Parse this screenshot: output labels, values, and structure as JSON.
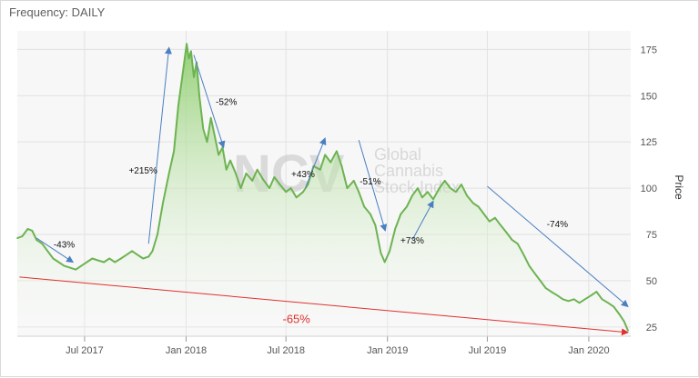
{
  "header": {
    "frequency_label": "Frequency: DAILY"
  },
  "watermark": {
    "logo": "NCV",
    "line1": "Global",
    "line2": "Cannabis",
    "line3": "Stock Index"
  },
  "colors": {
    "line": "#6db352",
    "fill_top": "#8fce6f",
    "arrow_blue": "#4a7fc1",
    "trend_red": "#e03030"
  },
  "chart_data": {
    "type": "area",
    "xlabel": "",
    "ylabel": "Price",
    "ylim": [
      20,
      185
    ],
    "yticks": [
      25,
      50,
      75,
      100,
      125,
      150,
      175
    ],
    "xlim": [
      "2017-03-01",
      "2020-03-17"
    ],
    "xticks": [
      {
        "date": "2017-07-01",
        "label": "Jul 2017"
      },
      {
        "date": "2018-01-01",
        "label": "Jan 2018"
      },
      {
        "date": "2018-07-01",
        "label": "Jul 2018"
      },
      {
        "date": "2019-01-01",
        "label": "Jan 2019"
      },
      {
        "date": "2019-07-01",
        "label": "Jul 2019"
      },
      {
        "date": "2020-01-01",
        "label": "Jan 2020"
      }
    ],
    "grid": true,
    "series": [
      {
        "points": [
          [
            "2017-03-01",
            73
          ],
          [
            "2017-03-10",
            74
          ],
          [
            "2017-03-20",
            78
          ],
          [
            "2017-03-28",
            77
          ],
          [
            "2017-04-05",
            72
          ],
          [
            "2017-04-15",
            70
          ],
          [
            "2017-04-25",
            66
          ],
          [
            "2017-05-05",
            62
          ],
          [
            "2017-05-15",
            60
          ],
          [
            "2017-05-25",
            58
          ],
          [
            "2017-06-05",
            57
          ],
          [
            "2017-06-15",
            56
          ],
          [
            "2017-06-25",
            58
          ],
          [
            "2017-07-05",
            60
          ],
          [
            "2017-07-15",
            62
          ],
          [
            "2017-07-25",
            61
          ],
          [
            "2017-08-05",
            60
          ],
          [
            "2017-08-15",
            62
          ],
          [
            "2017-08-25",
            60
          ],
          [
            "2017-09-05",
            62
          ],
          [
            "2017-09-15",
            64
          ],
          [
            "2017-09-25",
            66
          ],
          [
            "2017-10-05",
            64
          ],
          [
            "2017-10-15",
            62
          ],
          [
            "2017-10-25",
            63
          ],
          [
            "2017-11-01",
            66
          ],
          [
            "2017-11-10",
            75
          ],
          [
            "2017-11-20",
            92
          ],
          [
            "2017-12-01",
            108
          ],
          [
            "2017-12-10",
            120
          ],
          [
            "2017-12-18",
            145
          ],
          [
            "2017-12-25",
            160
          ],
          [
            "2018-01-02",
            178
          ],
          [
            "2018-01-06",
            170
          ],
          [
            "2018-01-10",
            174
          ],
          [
            "2018-01-15",
            160
          ],
          [
            "2018-01-20",
            168
          ],
          [
            "2018-01-25",
            150
          ],
          [
            "2018-02-01",
            132
          ],
          [
            "2018-02-08",
            125
          ],
          [
            "2018-02-15",
            138
          ],
          [
            "2018-02-22",
            128
          ],
          [
            "2018-03-01",
            118
          ],
          [
            "2018-03-08",
            122
          ],
          [
            "2018-03-15",
            110
          ],
          [
            "2018-03-22",
            115
          ],
          [
            "2018-04-01",
            108
          ],
          [
            "2018-04-10",
            100
          ],
          [
            "2018-04-20",
            108
          ],
          [
            "2018-05-01",
            104
          ],
          [
            "2018-05-10",
            110
          ],
          [
            "2018-05-20",
            105
          ],
          [
            "2018-06-01",
            100
          ],
          [
            "2018-06-10",
            106
          ],
          [
            "2018-06-20",
            102
          ],
          [
            "2018-07-01",
            98
          ],
          [
            "2018-07-10",
            100
          ],
          [
            "2018-07-20",
            95
          ],
          [
            "2018-08-01",
            98
          ],
          [
            "2018-08-10",
            102
          ],
          [
            "2018-08-20",
            112
          ],
          [
            "2018-09-01",
            110
          ],
          [
            "2018-09-10",
            118
          ],
          [
            "2018-09-20",
            114
          ],
          [
            "2018-10-01",
            120
          ],
          [
            "2018-10-10",
            112
          ],
          [
            "2018-10-20",
            100
          ],
          [
            "2018-11-01",
            104
          ],
          [
            "2018-11-10",
            98
          ],
          [
            "2018-11-20",
            90
          ],
          [
            "2018-12-01",
            86
          ],
          [
            "2018-12-10",
            80
          ],
          [
            "2018-12-20",
            65
          ],
          [
            "2018-12-27",
            60
          ],
          [
            "2019-01-05",
            66
          ],
          [
            "2019-01-15",
            78
          ],
          [
            "2019-01-25",
            86
          ],
          [
            "2019-02-05",
            90
          ],
          [
            "2019-02-15",
            96
          ],
          [
            "2019-02-25",
            100
          ],
          [
            "2019-03-05",
            95
          ],
          [
            "2019-03-15",
            98
          ],
          [
            "2019-03-25",
            94
          ],
          [
            "2019-04-05",
            100
          ],
          [
            "2019-04-15",
            104
          ],
          [
            "2019-04-25",
            100
          ],
          [
            "2019-05-05",
            98
          ],
          [
            "2019-05-15",
            102
          ],
          [
            "2019-05-25",
            96
          ],
          [
            "2019-06-05",
            92
          ],
          [
            "2019-06-15",
            90
          ],
          [
            "2019-06-25",
            86
          ],
          [
            "2019-07-05",
            82
          ],
          [
            "2019-07-15",
            84
          ],
          [
            "2019-07-25",
            80
          ],
          [
            "2019-08-05",
            76
          ],
          [
            "2019-08-15",
            72
          ],
          [
            "2019-08-25",
            70
          ],
          [
            "2019-09-05",
            64
          ],
          [
            "2019-09-15",
            58
          ],
          [
            "2019-09-25",
            54
          ],
          [
            "2019-10-05",
            50
          ],
          [
            "2019-10-15",
            46
          ],
          [
            "2019-10-25",
            44
          ],
          [
            "2019-11-05",
            42
          ],
          [
            "2019-11-15",
            40
          ],
          [
            "2019-11-25",
            39
          ],
          [
            "2019-12-05",
            40
          ],
          [
            "2019-12-15",
            38
          ],
          [
            "2019-12-25",
            40
          ],
          [
            "2020-01-05",
            42
          ],
          [
            "2020-01-15",
            44
          ],
          [
            "2020-01-25",
            40
          ],
          [
            "2020-02-05",
            38
          ],
          [
            "2020-02-15",
            36
          ],
          [
            "2020-02-25",
            32
          ],
          [
            "2020-03-05",
            28
          ],
          [
            "2020-03-12",
            23
          ]
        ]
      }
    ],
    "annotations": [
      {
        "label": "-43%",
        "color": "blue",
        "text_at": [
          "2017-05-25",
          68
        ],
        "arrow": [
          [
            "2017-04-05",
            73
          ],
          [
            "2017-06-10",
            60
          ]
        ]
      },
      {
        "label": "+215%",
        "color": "blue",
        "text_at": [
          "2017-10-15",
          108
        ],
        "arrow": [
          [
            "2017-10-25",
            70
          ],
          [
            "2017-12-01",
            176
          ]
        ]
      },
      {
        "label": "-52%",
        "color": "blue",
        "text_at": [
          "2018-03-15",
          145
        ],
        "arrow": [
          [
            "2018-01-15",
            172
          ],
          [
            "2018-03-10",
            122
          ]
        ]
      },
      {
        "label": "+43%",
        "color": "blue",
        "text_at": [
          "2018-08-01",
          106
        ],
        "arrow": [
          [
            "2018-08-05",
            100
          ],
          [
            "2018-09-10",
            127
          ]
        ]
      },
      {
        "label": "-51%",
        "color": "blue",
        "text_at": [
          "2018-12-01",
          102
        ],
        "arrow": [
          [
            "2018-11-10",
            126
          ],
          [
            "2018-12-28",
            77
          ]
        ]
      },
      {
        "label": "+73%",
        "color": "blue",
        "text_at": [
          "2019-02-15",
          70
        ],
        "arrow": [
          [
            "2019-02-15",
            72
          ],
          [
            "2019-03-25",
            93
          ]
        ]
      },
      {
        "label": "-74%",
        "color": "blue",
        "text_at": [
          "2019-11-05",
          79
        ],
        "arrow": [
          [
            "2019-07-01",
            101
          ],
          [
            "2020-03-12",
            36
          ]
        ]
      },
      {
        "label": "-65%",
        "color": "red",
        "text_at": [
          "2018-07-20",
          27
        ],
        "arrow": [
          [
            "2017-03-05",
            52
          ],
          [
            "2020-03-12",
            22
          ]
        ]
      }
    ]
  }
}
